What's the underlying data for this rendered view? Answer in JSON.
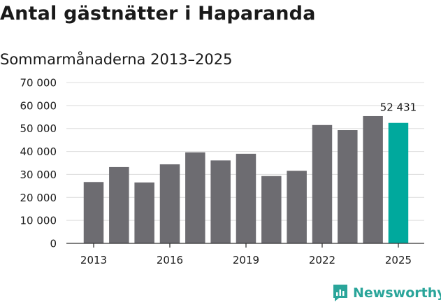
{
  "title": "Antal gästnätter i Haparanda",
  "subtitle": "Sommarmånaderna 2013–2025",
  "brand": {
    "name": "Newsworthy",
    "logo_icon": "newsworthy-bar-chart-icon"
  },
  "colors": {
    "bar": "#6d6c71",
    "highlight": "#00a99d",
    "grid": "#dcdcdc",
    "axis": "#333333",
    "brand": "#2aa59a"
  },
  "chart_data": {
    "type": "bar",
    "title": "Antal gästnätter i Haparanda",
    "subtitle": "Sommarmånaderna 2013–2025",
    "xlabel": "",
    "ylabel": "",
    "categories": [
      "2013",
      "2014",
      "2015",
      "2016",
      "2017",
      "2018",
      "2019",
      "2020",
      "2021",
      "2022",
      "2023",
      "2024",
      "2025"
    ],
    "values": [
      26700,
      33200,
      26500,
      34400,
      39600,
      36100,
      39000,
      29300,
      31600,
      51500,
      49300,
      55400,
      52431
    ],
    "highlight_index": 12,
    "x_tick_labels": [
      "2013",
      "2016",
      "2019",
      "2022",
      "2025"
    ],
    "y_ticks": [
      0,
      10000,
      20000,
      30000,
      40000,
      50000,
      60000,
      70000
    ],
    "y_tick_labels": [
      "0",
      "10 000",
      "20 000",
      "30 000",
      "40 000",
      "50 000",
      "60 000",
      "70 000"
    ],
    "ylim": [
      0,
      70000
    ],
    "grid": true,
    "data_labels": [
      {
        "index": 12,
        "text": "52 431"
      }
    ]
  }
}
